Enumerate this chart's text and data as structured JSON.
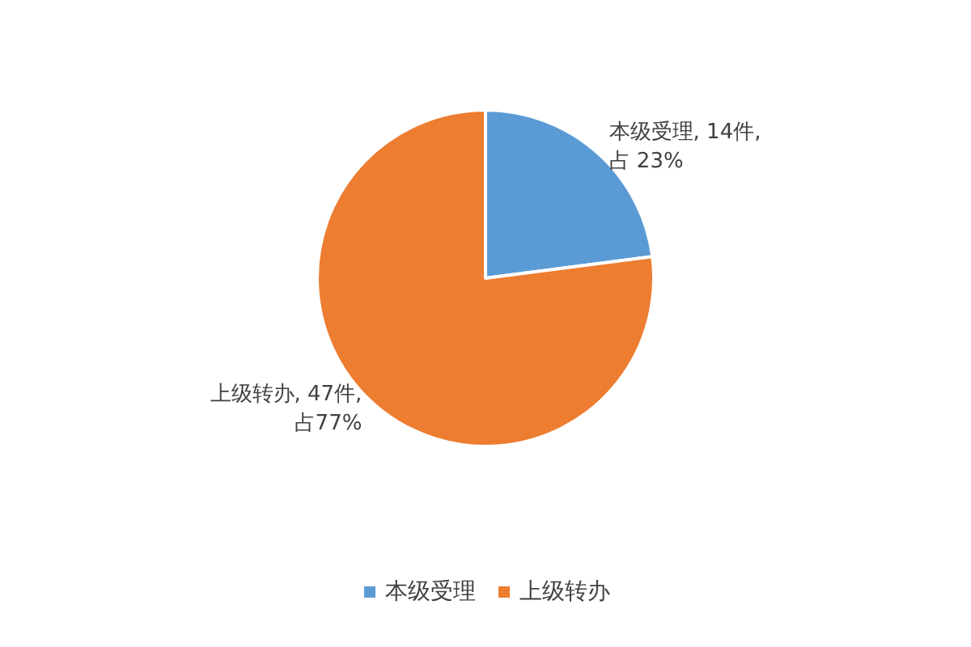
{
  "chart_data": {
    "type": "pie",
    "categories": [
      "本级受理",
      "上级转办"
    ],
    "values": [
      14,
      47
    ],
    "colors": [
      "#5b9bd5",
      "#ed7d31"
    ],
    "value_labels": [
      "本级受理, 14件,占 23%",
      "上级转办, 47件,占77%"
    ],
    "legend": "bottom"
  }
}
